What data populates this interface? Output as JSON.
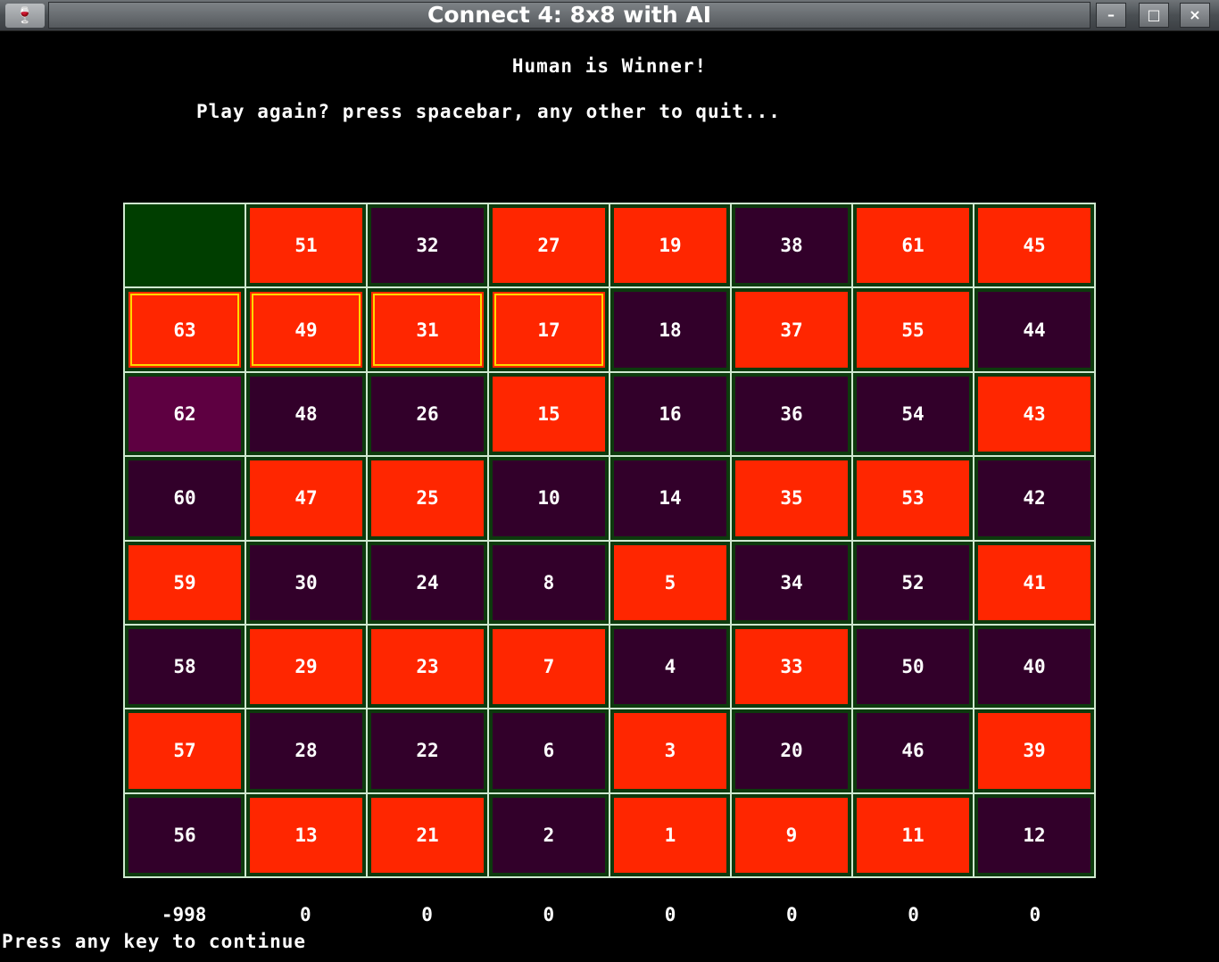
{
  "window": {
    "title": "Connect 4: 8x8 with AI",
    "minimize_label": "–",
    "maximize_label": "□",
    "close_label": "×",
    "app_icon": "🍷"
  },
  "status": {
    "winner_text": "Human is Winner!",
    "prompt_text": "Play again? press spacebar, any other to quit..."
  },
  "colors": {
    "human_piece": "#ff2600",
    "ai_piece": "#32002a",
    "selected_cell": "#5e0041",
    "empty_cell": "#003e00",
    "grid_line": "#cfe8cf",
    "winning_outline": "#ffd800"
  },
  "board": {
    "rows": [
      [
        {
          "n": "",
          "s": "empty"
        },
        {
          "n": "51",
          "s": "human"
        },
        {
          "n": "32",
          "s": "ai"
        },
        {
          "n": "27",
          "s": "human"
        },
        {
          "n": "19",
          "s": "human"
        },
        {
          "n": "38",
          "s": "ai"
        },
        {
          "n": "61",
          "s": "human"
        },
        {
          "n": "45",
          "s": "human"
        }
      ],
      [
        {
          "n": "63",
          "s": "human",
          "w": true
        },
        {
          "n": "49",
          "s": "human",
          "w": true
        },
        {
          "n": "31",
          "s": "human",
          "w": true
        },
        {
          "n": "17",
          "s": "human",
          "w": true
        },
        {
          "n": "18",
          "s": "ai"
        },
        {
          "n": "37",
          "s": "human"
        },
        {
          "n": "55",
          "s": "human"
        },
        {
          "n": "44",
          "s": "ai"
        }
      ],
      [
        {
          "n": "62",
          "s": "selected"
        },
        {
          "n": "48",
          "s": "ai"
        },
        {
          "n": "26",
          "s": "ai"
        },
        {
          "n": "15",
          "s": "human"
        },
        {
          "n": "16",
          "s": "ai"
        },
        {
          "n": "36",
          "s": "ai"
        },
        {
          "n": "54",
          "s": "ai"
        },
        {
          "n": "43",
          "s": "human"
        }
      ],
      [
        {
          "n": "60",
          "s": "ai"
        },
        {
          "n": "47",
          "s": "human"
        },
        {
          "n": "25",
          "s": "human"
        },
        {
          "n": "10",
          "s": "ai"
        },
        {
          "n": "14",
          "s": "ai"
        },
        {
          "n": "35",
          "s": "human"
        },
        {
          "n": "53",
          "s": "human"
        },
        {
          "n": "42",
          "s": "ai"
        }
      ],
      [
        {
          "n": "59",
          "s": "human"
        },
        {
          "n": "30",
          "s": "ai"
        },
        {
          "n": "24",
          "s": "ai"
        },
        {
          "n": "8",
          "s": "ai"
        },
        {
          "n": "5",
          "s": "human"
        },
        {
          "n": "34",
          "s": "ai"
        },
        {
          "n": "52",
          "s": "ai"
        },
        {
          "n": "41",
          "s": "human"
        }
      ],
      [
        {
          "n": "58",
          "s": "ai"
        },
        {
          "n": "29",
          "s": "human"
        },
        {
          "n": "23",
          "s": "human"
        },
        {
          "n": "7",
          "s": "human"
        },
        {
          "n": "4",
          "s": "ai"
        },
        {
          "n": "33",
          "s": "human"
        },
        {
          "n": "50",
          "s": "ai"
        },
        {
          "n": "40",
          "s": "ai"
        }
      ],
      [
        {
          "n": "57",
          "s": "human"
        },
        {
          "n": "28",
          "s": "ai"
        },
        {
          "n": "22",
          "s": "ai"
        },
        {
          "n": "6",
          "s": "ai"
        },
        {
          "n": "3",
          "s": "human"
        },
        {
          "n": "20",
          "s": "ai"
        },
        {
          "n": "46",
          "s": "ai"
        },
        {
          "n": "39",
          "s": "human"
        }
      ],
      [
        {
          "n": "56",
          "s": "ai"
        },
        {
          "n": "13",
          "s": "human"
        },
        {
          "n": "21",
          "s": "human"
        },
        {
          "n": "2",
          "s": "ai"
        },
        {
          "n": "1",
          "s": "human"
        },
        {
          "n": "9",
          "s": "human"
        },
        {
          "n": "11",
          "s": "human"
        },
        {
          "n": "12",
          "s": "ai"
        }
      ]
    ]
  },
  "column_scores": [
    "-998",
    "0",
    "0",
    "0",
    "0",
    "0",
    "0",
    "0"
  ],
  "footer": {
    "continue_text": "Press any key to continue"
  }
}
